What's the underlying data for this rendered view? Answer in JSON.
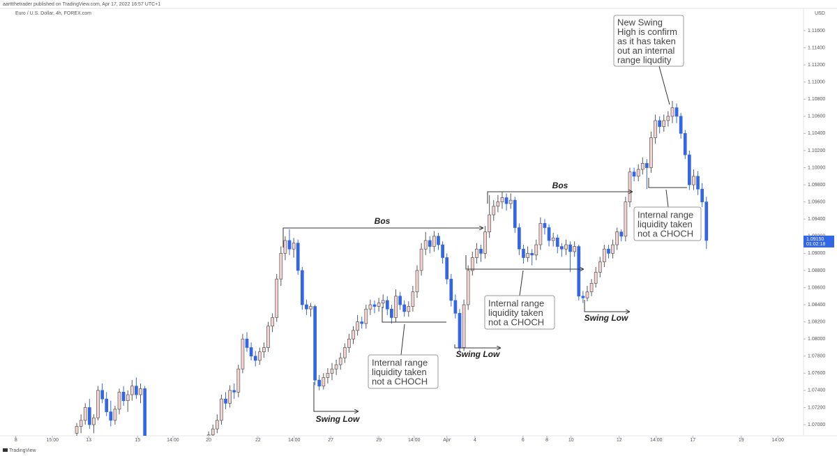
{
  "header": {
    "publisher": "aarttthetrader published on TradingView.com, Apr 17, 2022 16:57 UTC+1",
    "symbol": "Euro / U.S. Dollar, 4h, FOREX.com",
    "currency": "USD",
    "brand": "TradingView"
  },
  "chart_data": {
    "type": "candlestick",
    "up_color": "#f6d3d3",
    "down_color": "#3366e6",
    "wick_color": "#555555",
    "grid": false,
    "ylim": [
      1.0687,
      1.1186
    ],
    "yticks": [
      {
        "value": 1.07,
        "label": "1.07000"
      },
      {
        "value": 1.072,
        "label": "1.07200"
      },
      {
        "value": 1.074,
        "label": "1.07400"
      },
      {
        "value": 1.076,
        "label": "1.07600"
      },
      {
        "value": 1.078,
        "label": "1.07800"
      },
      {
        "value": 1.08,
        "label": "1.08000"
      },
      {
        "value": 1.082,
        "label": "1.08200"
      },
      {
        "value": 1.084,
        "label": "1.08400"
      },
      {
        "value": 1.086,
        "label": "1.08600"
      },
      {
        "value": 1.088,
        "label": "1.08800"
      },
      {
        "value": 1.09,
        "label": "1.09000"
      },
      {
        "value": 1.092,
        "label": "1.09200"
      },
      {
        "value": 1.094,
        "label": "1.09400"
      },
      {
        "value": 1.096,
        "label": "1.09600"
      },
      {
        "value": 1.098,
        "label": "1.09800"
      },
      {
        "value": 1.1,
        "label": "1.10000"
      },
      {
        "value": 1.102,
        "label": "1.10200"
      },
      {
        "value": 1.104,
        "label": "1.10400"
      },
      {
        "value": 1.106,
        "label": "1.10600"
      },
      {
        "value": 1.108,
        "label": "1.10800"
      },
      {
        "value": 1.11,
        "label": "1.11000"
      },
      {
        "value": 1.112,
        "label": "1.11200"
      },
      {
        "value": 1.114,
        "label": "1.11400"
      },
      {
        "value": 1.116,
        "label": "1.11600"
      }
    ],
    "xlim": [
      -16.4,
      170.5
    ],
    "xticks": [
      {
        "value": -14.3,
        "label": "8"
      },
      {
        "value": -5.7,
        "label": "15:00"
      },
      {
        "value": 2.8,
        "label": "13"
      },
      {
        "value": 14.3,
        "label": "15"
      },
      {
        "value": 22.6,
        "label": "14:00"
      },
      {
        "value": 31,
        "label": "20"
      },
      {
        "value": 42.6,
        "label": "22"
      },
      {
        "value": 51.1,
        "label": "14:00"
      },
      {
        "value": 59.7,
        "label": "27"
      },
      {
        "value": 71,
        "label": "29"
      },
      {
        "value": 79.3,
        "label": "14:00"
      },
      {
        "value": 87,
        "label": "Apr"
      },
      {
        "value": 93.6,
        "label": "4"
      },
      {
        "value": 104.9,
        "label": "6"
      },
      {
        "value": 110.5,
        "label": "8"
      },
      {
        "value": 116.2,
        "label": "10"
      },
      {
        "value": 127.5,
        "label": "12"
      },
      {
        "value": 136.2,
        "label": "14:00"
      },
      {
        "value": 144.8,
        "label": "17"
      },
      {
        "value": 156.2,
        "label": "19"
      },
      {
        "value": 164.8,
        "label": "14:00"
      }
    ],
    "price_label": {
      "value": 1.0915,
      "label": "1.09150"
    },
    "countdown": "01:02:18",
    "x": [
      0,
      1,
      2,
      3,
      4,
      5,
      6,
      7,
      8,
      9,
      10,
      11,
      12,
      13,
      14,
      15,
      16,
      31,
      32,
      33,
      34,
      35,
      36,
      37,
      38,
      39,
      40,
      41,
      42,
      43,
      44,
      45,
      46,
      47,
      48,
      49,
      50,
      51,
      52,
      53,
      54,
      55,
      56,
      57,
      58,
      59,
      60,
      61,
      62,
      63,
      64,
      65,
      66,
      67,
      68,
      69,
      70,
      71,
      72,
      73,
      74,
      75,
      76,
      77,
      78,
      79,
      80,
      81,
      82,
      83,
      84,
      85,
      86,
      87,
      88,
      89,
      90,
      91,
      92,
      93,
      94,
      95,
      96,
      97,
      98,
      99,
      100,
      101,
      102,
      103,
      104,
      105,
      106,
      107,
      108,
      109,
      110,
      111,
      112,
      113,
      114,
      115,
      116,
      117,
      118,
      119,
      120,
      121,
      122,
      123,
      124,
      125,
      126,
      127,
      128,
      129,
      130,
      131,
      132,
      133,
      134,
      135,
      136,
      137,
      138,
      139,
      140,
      141,
      142,
      143,
      144,
      145,
      146,
      147,
      148
    ],
    "ohlc": [
      [
        1.069,
        1.0702,
        1.068,
        1.0698
      ],
      [
        1.0698,
        1.0712,
        1.069,
        1.0705
      ],
      [
        1.0705,
        1.0725,
        1.07,
        1.072
      ],
      [
        1.072,
        1.073,
        1.0695,
        1.07
      ],
      [
        1.07,
        1.0712,
        1.069,
        1.0708
      ],
      [
        1.0708,
        1.0745,
        1.0705,
        1.074
      ],
      [
        1.074,
        1.0748,
        1.0725,
        1.073
      ],
      [
        1.073,
        1.0738,
        1.071,
        1.0715
      ],
      [
        1.0715,
        1.0728,
        1.0698,
        1.0705
      ],
      [
        1.0705,
        1.0722,
        1.07,
        1.0718
      ],
      [
        1.0718,
        1.0742,
        1.0712,
        1.0738
      ],
      [
        1.0738,
        1.0745,
        1.0722,
        1.0728
      ],
      [
        1.0728,
        1.074,
        1.0715,
        1.0735
      ],
      [
        1.0735,
        1.0752,
        1.0728,
        1.0745
      ],
      [
        1.0745,
        1.0755,
        1.073,
        1.0735
      ],
      [
        1.0735,
        1.0748,
        1.0725,
        1.0742
      ],
      [
        1.0742,
        1.0745,
        1.067,
        1.0675
      ],
      [
        1.068,
        1.0692,
        1.0675,
        1.0688
      ],
      [
        1.0688,
        1.07,
        1.0683,
        1.0695
      ],
      [
        1.0695,
        1.0712,
        1.069,
        1.0705
      ],
      [
        1.0705,
        1.0735,
        1.07,
        1.073
      ],
      [
        1.073,
        1.0738,
        1.0718,
        1.0725
      ],
      [
        1.0725,
        1.0746,
        1.072,
        1.074
      ],
      [
        1.074,
        1.0748,
        1.073,
        1.0738
      ],
      [
        1.0738,
        1.077,
        1.0732,
        1.0765
      ],
      [
        1.0765,
        1.0806,
        1.076,
        1.08
      ],
      [
        1.08,
        1.0808,
        1.0785,
        1.079
      ],
      [
        1.079,
        1.0796,
        1.0775,
        1.078
      ],
      [
        1.078,
        1.0786,
        1.0768,
        1.0775
      ],
      [
        1.0775,
        1.079,
        1.077,
        1.0785
      ],
      [
        1.0785,
        1.0796,
        1.0778,
        1.079
      ],
      [
        1.079,
        1.082,
        1.0785,
        1.0815
      ],
      [
        1.0815,
        1.083,
        1.0808,
        1.0825
      ],
      [
        1.0825,
        1.0876,
        1.082,
        1.087
      ],
      [
        1.087,
        1.0908,
        1.0862,
        1.09
      ],
      [
        1.09,
        1.092,
        1.0892,
        1.0915
      ],
      [
        1.0915,
        1.0928,
        1.0898,
        1.0905
      ],
      [
        1.0905,
        1.0918,
        1.0895,
        1.0912
      ],
      [
        1.0912,
        1.0916,
        1.0875,
        1.088
      ],
      [
        1.088,
        1.0884,
        1.0834,
        1.084
      ],
      [
        1.084,
        1.0846,
        1.0828,
        1.0835
      ],
      [
        1.0835,
        1.0842,
        1.0826,
        1.0838
      ],
      [
        1.0838,
        1.084,
        1.0746,
        1.0752
      ],
      [
        1.0752,
        1.0758,
        1.074,
        1.0745
      ],
      [
        1.0745,
        1.076,
        1.0741,
        1.0755
      ],
      [
        1.0755,
        1.0766,
        1.0748,
        1.076
      ],
      [
        1.076,
        1.0772,
        1.0752,
        1.0765
      ],
      [
        1.0765,
        1.0776,
        1.0758,
        1.077
      ],
      [
        1.077,
        1.0784,
        1.0764,
        1.0778
      ],
      [
        1.0778,
        1.0795,
        1.0772,
        1.079
      ],
      [
        1.079,
        1.0806,
        1.0784,
        1.08
      ],
      [
        1.08,
        1.0815,
        1.0794,
        1.081
      ],
      [
        1.081,
        1.0828,
        1.0804,
        1.082
      ],
      [
        1.082,
        1.0826,
        1.0812,
        1.0818
      ],
      [
        1.0818,
        1.084,
        1.0812,
        1.0835
      ],
      [
        1.0835,
        1.0846,
        1.0828,
        1.084
      ],
      [
        1.084,
        1.0845,
        1.083,
        1.0838
      ],
      [
        1.0838,
        1.0848,
        1.0832,
        1.0842
      ],
      [
        1.0842,
        1.0852,
        1.0836,
        1.0845
      ],
      [
        1.0845,
        1.085,
        1.0828,
        1.0835
      ],
      [
        1.0835,
        1.084,
        1.0818,
        1.0825
      ],
      [
        1.0825,
        1.0858,
        1.082,
        1.085
      ],
      [
        1.085,
        1.0855,
        1.0834,
        1.084
      ],
      [
        1.084,
        1.0845,
        1.0826,
        1.0832
      ],
      [
        1.0832,
        1.0844,
        1.0826,
        1.0838
      ],
      [
        1.0838,
        1.0862,
        1.0832,
        1.0855
      ],
      [
        1.0855,
        1.0886,
        1.0848,
        1.088
      ],
      [
        1.088,
        1.0912,
        1.0874,
        1.0905
      ],
      [
        1.0905,
        1.0925,
        1.0898,
        1.0915
      ],
      [
        1.0915,
        1.092,
        1.09,
        1.0908
      ],
      [
        1.0908,
        1.0926,
        1.0902,
        1.092
      ],
      [
        1.092,
        1.0924,
        1.0904,
        1.091
      ],
      [
        1.091,
        1.0914,
        1.0888,
        1.0895
      ],
      [
        1.0895,
        1.09,
        1.0864,
        1.087
      ],
      [
        1.087,
        1.0876,
        1.0838,
        1.0845
      ],
      [
        1.0845,
        1.0852,
        1.0824,
        1.083
      ],
      [
        1.083,
        1.0835,
        1.0785,
        1.079
      ],
      [
        1.079,
        1.0846,
        1.0786,
        1.084
      ],
      [
        1.084,
        1.0886,
        1.0834,
        1.088
      ],
      [
        1.088,
        1.0902,
        1.0874,
        1.0895
      ],
      [
        1.0895,
        1.0912,
        1.0888,
        1.0905
      ],
      [
        1.0905,
        1.091,
        1.089,
        1.09
      ],
      [
        1.09,
        1.0932,
        1.0894,
        1.0925
      ],
      [
        1.0925,
        1.0968,
        1.0918,
        1.0945
      ],
      [
        1.0945,
        1.0962,
        1.0938,
        1.0955
      ],
      [
        1.0955,
        1.0968,
        1.0948,
        1.096
      ],
      [
        1.096,
        1.0972,
        1.0952,
        1.0965
      ],
      [
        1.0965,
        1.097,
        1.095,
        1.0958
      ],
      [
        1.0958,
        1.097,
        1.0952,
        1.0962
      ],
      [
        1.0962,
        1.0966,
        1.0924,
        1.093
      ],
      [
        1.093,
        1.0935,
        1.0898,
        1.0905
      ],
      [
        1.0905,
        1.091,
        1.0888,
        1.0895
      ],
      [
        1.0895,
        1.0908,
        1.089,
        1.09
      ],
      [
        1.09,
        1.0905,
        1.0886,
        1.0898
      ],
      [
        1.0898,
        1.0916,
        1.0892,
        1.091
      ],
      [
        1.091,
        1.0942,
        1.0904,
        1.0935
      ],
      [
        1.0935,
        1.094,
        1.0922,
        1.093
      ],
      [
        1.093,
        1.0934,
        1.0908,
        1.0915
      ],
      [
        1.0915,
        1.0924,
        1.0908,
        1.0918
      ],
      [
        1.0918,
        1.0922,
        1.09,
        1.0908
      ],
      [
        1.0908,
        1.0912,
        1.0896,
        1.0905
      ],
      [
        1.0905,
        1.0916,
        1.0898,
        1.091
      ],
      [
        1.091,
        1.0914,
        1.0878,
        1.0902
      ],
      [
        1.0902,
        1.0914,
        1.0896,
        1.0908
      ],
      [
        1.0908,
        1.091,
        1.0845,
        1.085
      ],
      [
        1.085,
        1.0856,
        1.0842,
        1.0848
      ],
      [
        1.0848,
        1.0862,
        1.0844,
        1.0855
      ],
      [
        1.0855,
        1.087,
        1.085,
        1.0865
      ],
      [
        1.0865,
        1.0884,
        1.086,
        1.0878
      ],
      [
        1.0878,
        1.0896,
        1.0872,
        1.089
      ],
      [
        1.089,
        1.091,
        1.0884,
        1.0905
      ],
      [
        1.0905,
        1.091,
        1.0894,
        1.09
      ],
      [
        1.09,
        1.0916,
        1.0894,
        1.091
      ],
      [
        1.091,
        1.093,
        1.0904,
        1.0925
      ],
      [
        1.0925,
        1.0928,
        1.0914,
        1.092
      ],
      [
        1.092,
        1.0966,
        1.0914,
        1.096
      ],
      [
        1.096,
        1.1,
        1.0954,
        1.0995
      ],
      [
        1.0995,
        1.1,
        1.0984,
        1.099
      ],
      [
        1.099,
        1.1004,
        1.0984,
        1.0998
      ],
      [
        1.0998,
        1.1012,
        1.0992,
        1.1005
      ],
      [
        1.1005,
        1.101,
        1.0975,
        1.1
      ],
      [
        1.1,
        1.1042,
        1.0994,
        1.1035
      ],
      [
        1.1035,
        1.1062,
        1.1028,
        1.1055
      ],
      [
        1.1055,
        1.106,
        1.104,
        1.1048
      ],
      [
        1.1048,
        1.1062,
        1.1042,
        1.1055
      ],
      [
        1.1055,
        1.1066,
        1.1048,
        1.106
      ],
      [
        1.106,
        1.1078,
        1.1052,
        1.107
      ],
      [
        1.107,
        1.1075,
        1.1052,
        1.106
      ],
      [
        1.106,
        1.1064,
        1.1034,
        1.104
      ],
      [
        1.104,
        1.1044,
        1.101,
        1.1015
      ],
      [
        1.1015,
        1.102,
        1.0974,
        1.098
      ],
      [
        1.098,
        1.0998,
        1.0974,
        1.099
      ],
      [
        1.099,
        1.0996,
        1.0968,
        1.0975
      ],
      [
        1.0975,
        1.0982,
        1.0954,
        1.096
      ],
      [
        1.096,
        1.0966,
        1.0905,
        1.0915
      ]
    ],
    "annotations": {
      "bos_1": "Bos",
      "bos_2": "Bos",
      "swing_low_1": "Swing Low",
      "swing_low_2": "Swing Low",
      "swing_low_3": "Swing Low",
      "internal_1": [
        "Internal range",
        "liquidity taken",
        "not a CHOCH"
      ],
      "internal_2": [
        "Internal range",
        "liquidity taken",
        "not a CHOCH"
      ],
      "internal_3": [
        "Internal range",
        "liquidity taken",
        "not a CHOCH"
      ],
      "swing_high": [
        "New Swing",
        "High is confirm",
        "as it has taken",
        "out an internal",
        "range liqudity"
      ]
    }
  }
}
